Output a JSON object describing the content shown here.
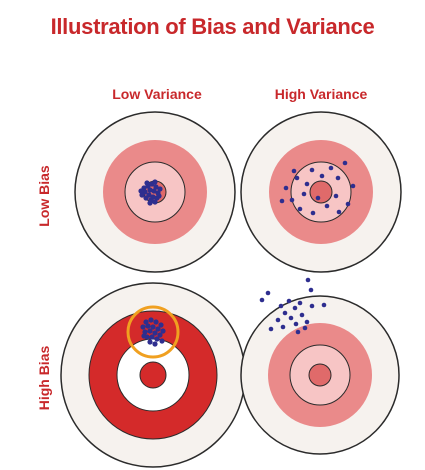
{
  "title": "Illustration of Bias and Variance",
  "columns": [
    {
      "label": "Low Variance"
    },
    {
      "label": "High Variance"
    }
  ],
  "rows": [
    {
      "label": "Low Bias"
    },
    {
      "label": "High Bias"
    }
  ],
  "colors": {
    "title": "#c8282b",
    "ring_outer": "#f6f2ee",
    "ring_pink": "#ea8a8a",
    "ring_light": "#f7c5c5",
    "bullseye": "#e06a6a",
    "ring_red": "#d42a2a",
    "ring_white": "#ffffff",
    "bullseye_red": "#d42a2a",
    "dots": "#2e2e8f",
    "highlight": "#f0a020"
  },
  "targets": [
    {
      "id": "low-bias-low-variance",
      "row": 0,
      "col": 0,
      "style": "pink"
    },
    {
      "id": "low-bias-high-variance",
      "row": 0,
      "col": 1,
      "style": "pink"
    },
    {
      "id": "high-bias-low-variance",
      "row": 1,
      "col": 0,
      "style": "red",
      "highlight_circle": true
    },
    {
      "id": "high-bias-high-variance",
      "row": 1,
      "col": 1,
      "style": "pink"
    }
  ]
}
